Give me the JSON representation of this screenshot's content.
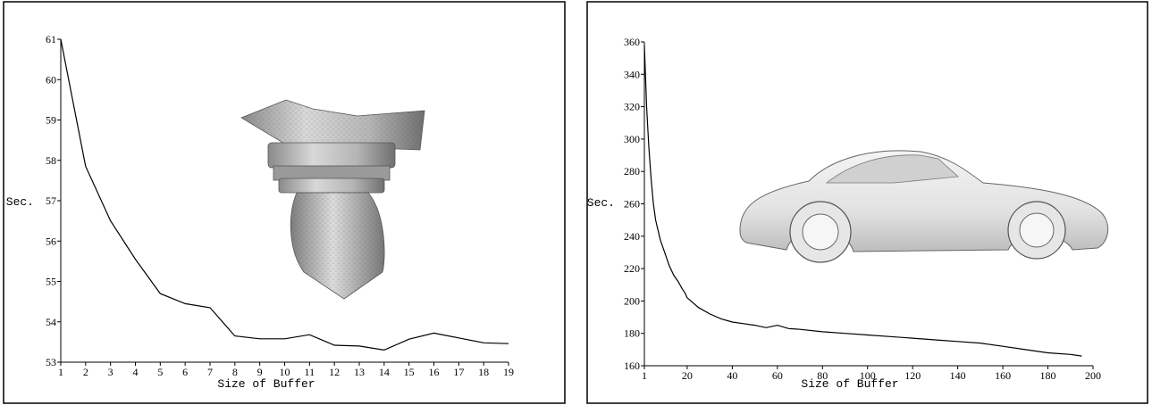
{
  "chart_data": [
    {
      "type": "line",
      "title": "",
      "xlabel": "Size of Buffer",
      "ylabel": "Sec.",
      "xlim": [
        1,
        19
      ],
      "ylim": [
        53,
        61
      ],
      "xticks": [
        1,
        2,
        3,
        4,
        5,
        6,
        7,
        8,
        9,
        10,
        11,
        12,
        13,
        14,
        15,
        16,
        17,
        18,
        19
      ],
      "yticks": [
        53,
        54,
        55,
        56,
        57,
        58,
        59,
        60,
        61
      ],
      "grid": false,
      "series": [
        {
          "x": [
            1,
            2,
            3,
            4,
            5,
            6,
            7,
            8,
            9,
            10,
            11,
            12,
            13,
            14,
            15,
            16,
            17,
            18,
            19
          ],
          "values": [
            61,
            57.85,
            56.5,
            55.55,
            54.7,
            54.45,
            54.35,
            53.65,
            53.58,
            53.58,
            53.68,
            53.42,
            53.4,
            53.3,
            53.57,
            53.72,
            53.6,
            53.48,
            53.46
          ]
        }
      ],
      "inset_image": "3d-column-capital-model"
    },
    {
      "type": "line",
      "title": "",
      "xlabel": "Size of Buffer",
      "ylabel": "Sec.",
      "xlim": [
        1,
        200
      ],
      "ylim": [
        160,
        360
      ],
      "xticks": [
        1,
        20,
        40,
        60,
        80,
        100,
        120,
        140,
        160,
        180,
        200
      ],
      "yticks": [
        160,
        180,
        200,
        220,
        240,
        260,
        280,
        300,
        320,
        340,
        360
      ],
      "grid": false,
      "series": [
        {
          "x": [
            1,
            2,
            3,
            4,
            5,
            6,
            8,
            10,
            12,
            14,
            16,
            18,
            19,
            20,
            25,
            30,
            35,
            40,
            45,
            50,
            55,
            60,
            65,
            70,
            80,
            90,
            100,
            110,
            120,
            130,
            140,
            150,
            160,
            170,
            180,
            190,
            195
          ],
          "values": [
            358,
            320,
            295,
            275,
            260,
            250,
            238,
            230,
            222,
            216,
            212,
            207,
            205,
            202,
            196,
            192,
            189,
            187,
            186,
            185,
            183.5,
            185,
            183,
            182.5,
            181,
            180,
            179,
            178,
            177,
            176,
            175,
            174,
            172,
            170,
            168,
            167,
            166
          ]
        }
      ],
      "inset_image": "3d-sports-car-model"
    }
  ]
}
